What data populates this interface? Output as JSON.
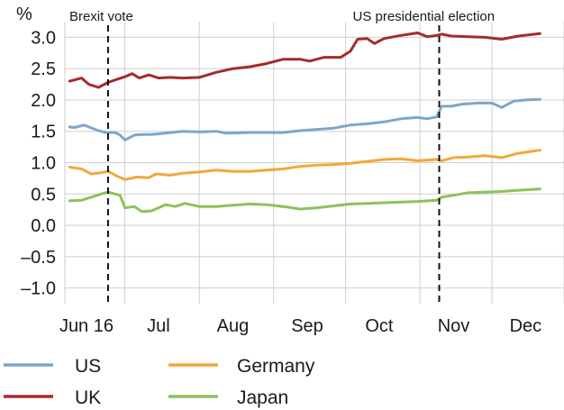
{
  "chart_data": {
    "type": "line",
    "ylabel": "%",
    "ylim": [
      -1.25,
      3.25
    ],
    "yticks": [
      "3.0",
      "2.5",
      "2.0",
      "1.5",
      "1.0",
      "0.5",
      "0.0",
      "–0.5",
      "–1.0"
    ],
    "ytick_values": [
      3.0,
      2.5,
      2.0,
      1.5,
      1.0,
      0.5,
      0.0,
      -0.5,
      -1.0
    ],
    "xlim": [
      "2016-06-06",
      "2016-12-31"
    ],
    "xticks": [
      {
        "label": "Jun 16",
        "date": "2016-06-15"
      },
      {
        "label": "Jul",
        "date": "2016-07-15"
      },
      {
        "label": "Aug",
        "date": "2016-08-15"
      },
      {
        "label": "Sep",
        "date": "2016-09-15"
      },
      {
        "label": "Oct",
        "date": "2016-10-15"
      },
      {
        "label": "Nov",
        "date": "2016-11-15"
      },
      {
        "label": "Dec",
        "date": "2016-12-15"
      }
    ],
    "grid": true,
    "legend_position": "bottom",
    "annotations": [
      {
        "label": "Brexit vote",
        "date": "2016-06-24",
        "style": "dashed"
      },
      {
        "label": "US presidential election",
        "date": "2016-11-09",
        "style": "dashed"
      }
    ],
    "series": [
      {
        "name": "US",
        "color": "#7ea6c9",
        "points": [
          [
            "2016-06-08",
            1.57
          ],
          [
            "2016-06-10",
            1.56
          ],
          [
            "2016-06-14",
            1.6
          ],
          [
            "2016-06-16",
            1.57
          ],
          [
            "2016-06-20",
            1.51
          ],
          [
            "2016-06-23",
            1.48
          ],
          [
            "2016-06-27",
            1.48
          ],
          [
            "2016-06-29",
            1.44
          ],
          [
            "2016-07-01",
            1.36
          ],
          [
            "2016-07-05",
            1.44
          ],
          [
            "2016-07-08",
            1.45
          ],
          [
            "2016-07-12",
            1.45
          ],
          [
            "2016-07-18",
            1.47
          ],
          [
            "2016-07-25",
            1.5
          ],
          [
            "2016-08-01",
            1.49
          ],
          [
            "2016-08-08",
            1.5
          ],
          [
            "2016-08-12",
            1.47
          ],
          [
            "2016-08-22",
            1.48
          ],
          [
            "2016-08-29",
            1.48
          ],
          [
            "2016-09-05",
            1.48
          ],
          [
            "2016-09-12",
            1.51
          ],
          [
            "2016-09-19",
            1.53
          ],
          [
            "2016-09-26",
            1.55
          ],
          [
            "2016-10-03",
            1.6
          ],
          [
            "2016-10-10",
            1.62
          ],
          [
            "2016-10-17",
            1.65
          ],
          [
            "2016-10-24",
            1.7
          ],
          [
            "2016-10-31",
            1.72
          ],
          [
            "2016-11-04",
            1.7
          ],
          [
            "2016-11-08",
            1.73
          ],
          [
            "2016-11-10",
            1.9
          ],
          [
            "2016-11-14",
            1.9
          ],
          [
            "2016-11-18",
            1.93
          ],
          [
            "2016-11-25",
            1.95
          ],
          [
            "2016-12-01",
            1.95
          ],
          [
            "2016-12-05",
            1.88
          ],
          [
            "2016-12-10",
            1.98
          ],
          [
            "2016-12-15",
            2.0
          ],
          [
            "2016-12-21",
            2.01
          ]
        ]
      },
      {
        "name": "UK",
        "color": "#a62b2b",
        "points": [
          [
            "2016-06-08",
            2.3
          ],
          [
            "2016-06-10",
            2.32
          ],
          [
            "2016-06-13",
            2.35
          ],
          [
            "2016-06-16",
            2.25
          ],
          [
            "2016-06-20",
            2.2
          ],
          [
            "2016-06-24",
            2.28
          ],
          [
            "2016-06-27",
            2.32
          ],
          [
            "2016-07-01",
            2.37
          ],
          [
            "2016-07-04",
            2.42
          ],
          [
            "2016-07-07",
            2.35
          ],
          [
            "2016-07-11",
            2.4
          ],
          [
            "2016-07-15",
            2.35
          ],
          [
            "2016-07-20",
            2.36
          ],
          [
            "2016-07-25",
            2.35
          ],
          [
            "2016-08-01",
            2.36
          ],
          [
            "2016-08-08",
            2.44
          ],
          [
            "2016-08-15",
            2.5
          ],
          [
            "2016-08-22",
            2.53
          ],
          [
            "2016-08-29",
            2.58
          ],
          [
            "2016-09-05",
            2.65
          ],
          [
            "2016-09-12",
            2.65
          ],
          [
            "2016-09-16",
            2.62
          ],
          [
            "2016-09-22",
            2.68
          ],
          [
            "2016-09-29",
            2.68
          ],
          [
            "2016-10-03",
            2.78
          ],
          [
            "2016-10-06",
            2.97
          ],
          [
            "2016-10-10",
            2.98
          ],
          [
            "2016-10-13",
            2.9
          ],
          [
            "2016-10-17",
            2.98
          ],
          [
            "2016-10-24",
            3.03
          ],
          [
            "2016-10-31",
            3.07
          ],
          [
            "2016-11-04",
            3.01
          ],
          [
            "2016-11-08",
            3.03
          ],
          [
            "2016-11-10",
            3.05
          ],
          [
            "2016-11-14",
            3.02
          ],
          [
            "2016-11-21",
            3.01
          ],
          [
            "2016-11-28",
            3.0
          ],
          [
            "2016-12-05",
            2.97
          ],
          [
            "2016-12-12",
            3.02
          ],
          [
            "2016-12-21",
            3.06
          ]
        ]
      },
      {
        "name": "Germany",
        "color": "#f3a73b",
        "points": [
          [
            "2016-06-08",
            0.93
          ],
          [
            "2016-06-13",
            0.9
          ],
          [
            "2016-06-17",
            0.82
          ],
          [
            "2016-06-21",
            0.84
          ],
          [
            "2016-06-24",
            0.86
          ],
          [
            "2016-06-28",
            0.78
          ],
          [
            "2016-07-01",
            0.73
          ],
          [
            "2016-07-06",
            0.77
          ],
          [
            "2016-07-11",
            0.76
          ],
          [
            "2016-07-14",
            0.82
          ],
          [
            "2016-07-20",
            0.8
          ],
          [
            "2016-07-25",
            0.83
          ],
          [
            "2016-08-01",
            0.85
          ],
          [
            "2016-08-08",
            0.88
          ],
          [
            "2016-08-15",
            0.86
          ],
          [
            "2016-08-22",
            0.86
          ],
          [
            "2016-08-29",
            0.88
          ],
          [
            "2016-09-05",
            0.9
          ],
          [
            "2016-09-12",
            0.94
          ],
          [
            "2016-09-19",
            0.96
          ],
          [
            "2016-09-26",
            0.97
          ],
          [
            "2016-10-03",
            0.99
          ],
          [
            "2016-10-10",
            1.02
          ],
          [
            "2016-10-17",
            1.05
          ],
          [
            "2016-10-24",
            1.06
          ],
          [
            "2016-10-31",
            1.03
          ],
          [
            "2016-11-08",
            1.05
          ],
          [
            "2016-11-10",
            1.03
          ],
          [
            "2016-11-15",
            1.08
          ],
          [
            "2016-11-21",
            1.09
          ],
          [
            "2016-11-28",
            1.11
          ],
          [
            "2016-12-05",
            1.08
          ],
          [
            "2016-12-12",
            1.15
          ],
          [
            "2016-12-21",
            1.2
          ]
        ]
      },
      {
        "name": "Japan",
        "color": "#8dc15a",
        "points": [
          [
            "2016-06-08",
            0.39
          ],
          [
            "2016-06-13",
            0.4
          ],
          [
            "2016-06-17",
            0.45
          ],
          [
            "2016-06-21",
            0.5
          ],
          [
            "2016-06-24",
            0.53
          ],
          [
            "2016-06-29",
            0.48
          ],
          [
            "2016-07-01",
            0.28
          ],
          [
            "2016-07-05",
            0.3
          ],
          [
            "2016-07-08",
            0.22
          ],
          [
            "2016-07-12",
            0.23
          ],
          [
            "2016-07-15",
            0.28
          ],
          [
            "2016-07-18",
            0.33
          ],
          [
            "2016-07-22",
            0.3
          ],
          [
            "2016-07-26",
            0.35
          ],
          [
            "2016-08-01",
            0.3
          ],
          [
            "2016-08-08",
            0.3
          ],
          [
            "2016-08-15",
            0.32
          ],
          [
            "2016-08-22",
            0.34
          ],
          [
            "2016-08-29",
            0.33
          ],
          [
            "2016-09-05",
            0.3
          ],
          [
            "2016-09-12",
            0.26
          ],
          [
            "2016-09-19",
            0.28
          ],
          [
            "2016-09-26",
            0.31
          ],
          [
            "2016-10-03",
            0.34
          ],
          [
            "2016-10-10",
            0.35
          ],
          [
            "2016-10-17",
            0.36
          ],
          [
            "2016-10-24",
            0.37
          ],
          [
            "2016-10-31",
            0.38
          ],
          [
            "2016-11-08",
            0.4
          ],
          [
            "2016-11-10",
            0.45
          ],
          [
            "2016-11-15",
            0.48
          ],
          [
            "2016-11-21",
            0.52
          ],
          [
            "2016-11-28",
            0.53
          ],
          [
            "2016-12-05",
            0.54
          ],
          [
            "2016-12-12",
            0.56
          ],
          [
            "2016-12-21",
            0.58
          ]
        ]
      }
    ]
  }
}
